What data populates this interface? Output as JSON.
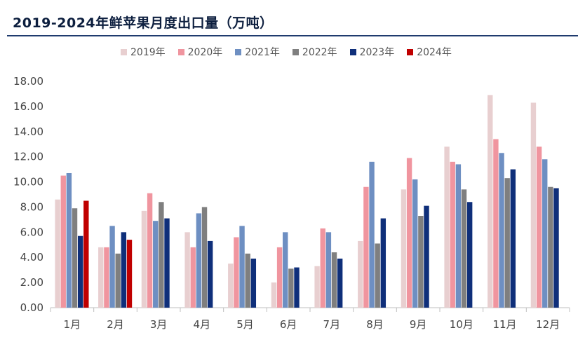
{
  "chart_data": {
    "type": "bar",
    "title": "2019-2024年鲜苹果月度出口量（万吨）",
    "xlabel": "",
    "ylabel": "",
    "ylim": [
      0,
      18
    ],
    "yticks": [
      "0.00",
      "2.00",
      "4.00",
      "6.00",
      "8.00",
      "10.00",
      "12.00",
      "14.00",
      "16.00",
      "18.00"
    ],
    "categories": [
      "1月",
      "2月",
      "3月",
      "4月",
      "5月",
      "6月",
      "7月",
      "8月",
      "9月",
      "10月",
      "11月",
      "12月"
    ],
    "grid": false,
    "legend_position": "top",
    "series": [
      {
        "name": "2019年",
        "color": "#e8cfd0",
        "values": [
          8.6,
          4.8,
          7.7,
          6.0,
          3.5,
          2.0,
          3.3,
          5.3,
          9.4,
          12.8,
          16.9,
          16.3
        ]
      },
      {
        "name": "2020年",
        "color": "#f0959f",
        "values": [
          10.5,
          4.8,
          9.1,
          4.8,
          5.6,
          4.8,
          6.3,
          9.6,
          11.9,
          11.6,
          13.4,
          12.8
        ]
      },
      {
        "name": "2021年",
        "color": "#6e8fc2",
        "values": [
          10.7,
          6.5,
          6.9,
          7.5,
          6.5,
          6.0,
          6.0,
          11.6,
          10.2,
          11.4,
          12.3,
          11.8
        ]
      },
      {
        "name": "2022年",
        "color": "#7f7f7f",
        "values": [
          7.9,
          4.3,
          8.4,
          8.0,
          4.3,
          3.1,
          4.4,
          5.1,
          7.3,
          9.4,
          10.3,
          9.6
        ]
      },
      {
        "name": "2023年",
        "color": "#0f2f7a",
        "values": [
          5.7,
          6.0,
          7.1,
          5.3,
          3.9,
          3.2,
          3.9,
          7.1,
          8.1,
          8.4,
          11.0,
          9.5
        ]
      },
      {
        "name": "2024年",
        "color": "#c00000",
        "values": [
          8.5,
          5.4,
          null,
          null,
          null,
          null,
          null,
          null,
          null,
          null,
          null,
          null
        ]
      }
    ]
  }
}
